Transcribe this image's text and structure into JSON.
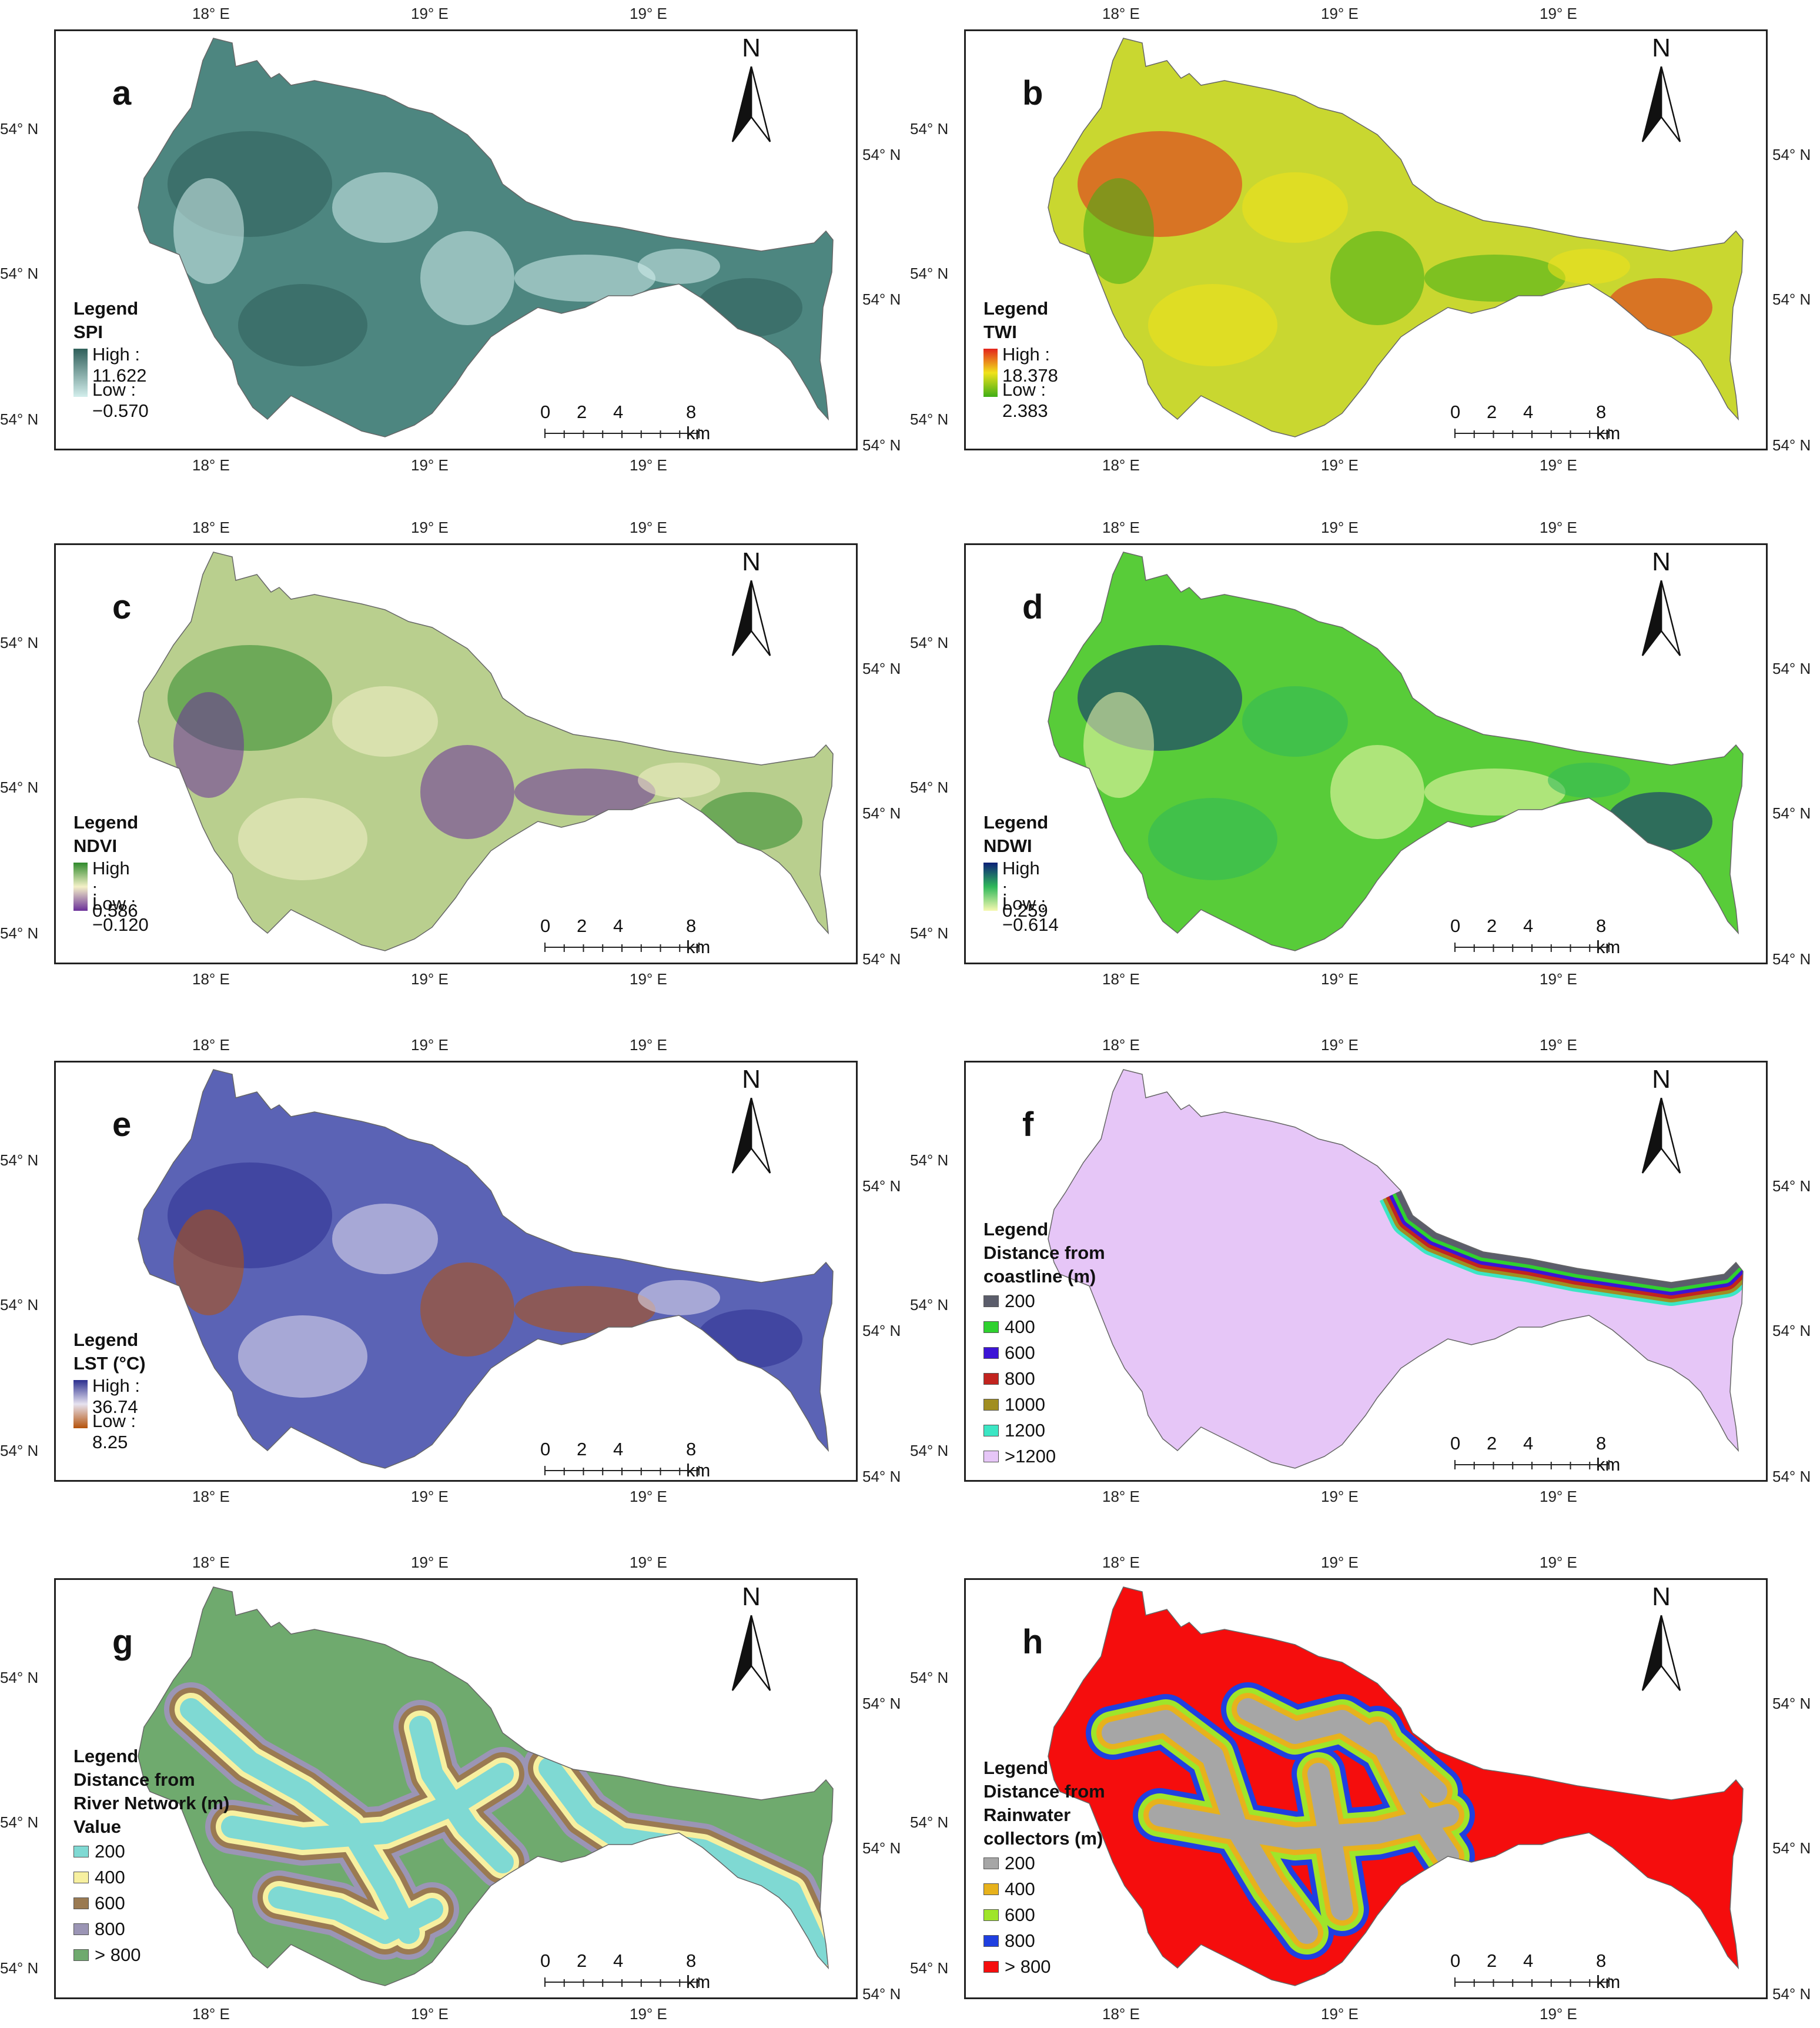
{
  "axes": {
    "top_labels": [
      "18° E",
      "19° E",
      "19° E"
    ],
    "bottom_labels": [
      "18° E",
      "19° E",
      "19° E"
    ],
    "left_labels": [
      "54° N",
      "54° N",
      "54° N"
    ],
    "right_labels": [
      "54° N",
      "54° N",
      "54° N"
    ]
  },
  "north_label": "N",
  "scale": {
    "labels": [
      "0",
      "2",
      "4",
      "8 km"
    ]
  },
  "panels": [
    {
      "letter": "a",
      "legend_title": "Legend",
      "legend_subtitle": "SPI",
      "high": "High : 11.622",
      "low": "Low : −0.570",
      "colors": {
        "high": "#2f5f5a",
        "low": "#d3eeec",
        "fill": "#4d8680"
      }
    },
    {
      "letter": "b",
      "legend_title": "Legend",
      "legend_subtitle": "TWI",
      "high": "High : 18.378",
      "low": "Low : 2.383",
      "colors": {
        "high": "#e3231c",
        "mid": "#f0e21b",
        "low": "#3fae16",
        "fill": "#c9d730"
      }
    },
    {
      "letter": "c",
      "legend_title": "Legend",
      "legend_subtitle": "NDVI",
      "high": "High : 0.586",
      "low": "Low : −0.120",
      "colors": {
        "high": "#2f8a2c",
        "mid": "#f4f1c8",
        "low": "#6a2f99",
        "fill": "#b9cf8e"
      }
    },
    {
      "letter": "d",
      "legend_title": "Legend",
      "legend_subtitle": "NDWI",
      "high": "High : 0.259",
      "low": "Low : −0.614",
      "colors": {
        "high": "#0c1f78",
        "mid": "#2fb85a",
        "low": "#f6f9b0",
        "fill": "#58cc39"
      }
    },
    {
      "letter": "e",
      "legend_title": "Legend",
      "legend_subtitle": "LST (°C)",
      "high": "High : 36.74",
      "low": "Low : 8.25",
      "colors": {
        "high": "#2b2f8f",
        "mid": "#e6e2f0",
        "low": "#b5520a",
        "fill": "#5b63b5"
      }
    },
    {
      "letter": "f",
      "legend_title": "Legend",
      "legend_subtitle": "Distance from",
      "legend_subtitle2": "coastline (m)",
      "items": [
        {
          "label": "200",
          "color": "#5b5d6b"
        },
        {
          "label": "400",
          "color": "#2fd12f"
        },
        {
          "label": "600",
          "color": "#3c14d6"
        },
        {
          "label": "800",
          "color": "#c2241f"
        },
        {
          "label": "1000",
          "color": "#a18e21"
        },
        {
          "label": "1200",
          "color": "#3be6c4"
        },
        {
          "label": ">1200",
          "color": "#e6c6f7"
        }
      ]
    },
    {
      "letter": "g",
      "legend_title": "Legend",
      "legend_subtitle": "Distance from",
      "legend_subtitle2": "River Network (m)",
      "legend_subtitle3": "Value",
      "items": [
        {
          "label": "200",
          "color": "#7fd9d3"
        },
        {
          "label": "400",
          "color": "#f7f0a0"
        },
        {
          "label": "600",
          "color": "#9a7a52"
        },
        {
          "label": "800",
          "color": "#9b95b5"
        },
        {
          "label": "> 800",
          "color": "#6faa6e"
        }
      ]
    },
    {
      "letter": "h",
      "legend_title": "Legend",
      "legend_subtitle": "Distance from",
      "legend_subtitle2": "Rainwater",
      "legend_subtitle3": "collectors (m)",
      "items": [
        {
          "label": "200",
          "color": "#a6a6a6"
        },
        {
          "label": "400",
          "color": "#e7b21c"
        },
        {
          "label": "600",
          "color": "#9fe52a"
        },
        {
          "label": "800",
          "color": "#1f3fe0"
        },
        {
          "label": "> 800",
          "color": "#f50d0d"
        }
      ]
    }
  ]
}
